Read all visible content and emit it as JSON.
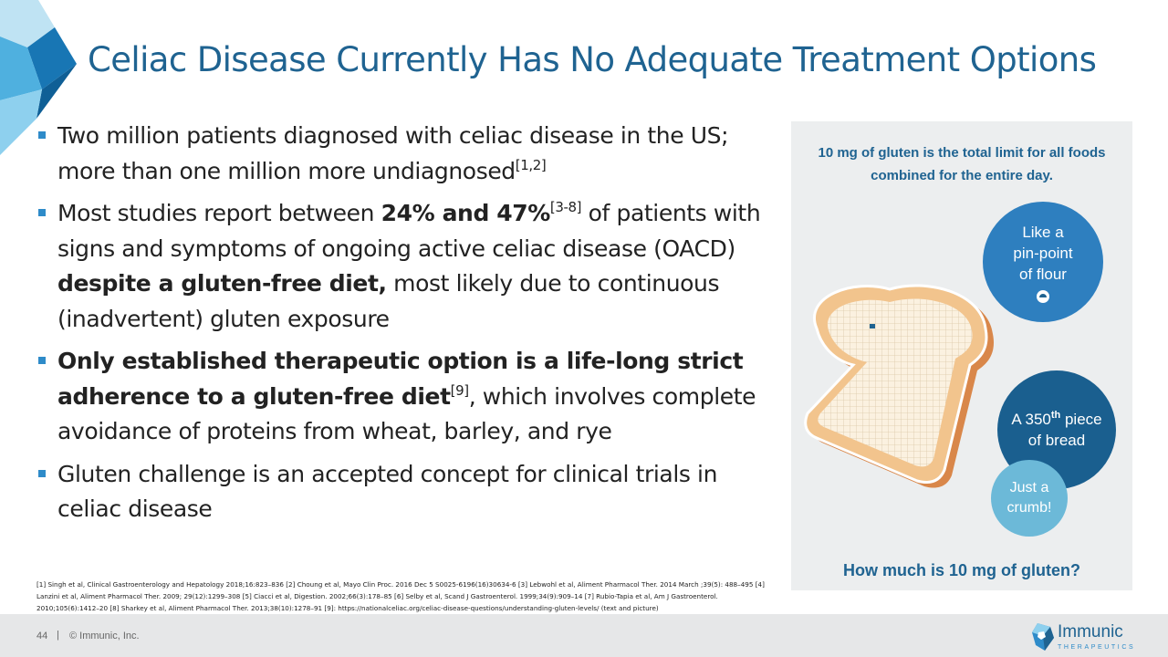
{
  "title": "Celiac Disease Currently Has No Adequate Treatment Options",
  "bullets": {
    "b1": {
      "t1": "Two million patients diagnosed with celiac disease in the US; more than one million more undiagnosed",
      "sup1": "[1,2]"
    },
    "b2": {
      "t1": "Most studies report between ",
      "bold1": "24% and 47%",
      "sup1": "[3-8]",
      "t2": " of patients with signs and symptoms of ongoing active celiac disease (OACD) ",
      "bold2": "despite a gluten-free diet,",
      "t3": " most likely due to continuous (inadvertent) gluten exposure"
    },
    "b3": {
      "bold1": "Only established therapeutic option is a life-long strict adherence to a gluten-free diet",
      "sup1": "[9]",
      "t1": ", which involves complete avoidance of proteins from wheat, barley, and rye"
    },
    "b4": {
      "t1": "Gluten challenge is an accepted concept for clinical trials in celiac disease"
    }
  },
  "panel": {
    "top_text": "10 mg of gluten is the total limit for all foods combined for the entire day.",
    "bottom_text": "How much is 10 mg of gluten?",
    "bubble1": {
      "l1": "Like a",
      "l2": "pin-point",
      "l3": "of flour"
    },
    "bubble2": {
      "l1a": "A 350",
      "l1sup": "th",
      "l1b": " piece",
      "l2": "of bread"
    },
    "bubble3": {
      "l1": "Just a",
      "l2": "crumb!"
    }
  },
  "references": "[1] Singh et al, Clinical Gastroenterology and Hepatology 2018;16:823–836 [2] Choung et al, Mayo Clin Proc. 2016 Dec 5 S0025-6196(16)30634-6 [3] Lebwohl et al, Aliment Pharmacol Ther. 2014 March ;39(5): 488–495 [4] Lanzini et al, Aliment Pharmacol Ther. 2009; 29(12):1299–308 [5] Ciacci et al, Digestion. 2002;66(3):178–85 [6] Selby et al, Scand J Gastroenterol. 1999;34(9):909–14 [7] Rubio-Tapia et al, Am J Gastroenterol. 2010;105(6):1412–20 [8] Sharkey et al, Aliment Pharmacol Ther. 2013;38(10):1278–91 [9]: https://nationalceliac.org/celiac-disease-questions/understanding-gluten-levels/ (text and picture)",
  "footer": {
    "page": "44",
    "separator": "|",
    "copyright": "© Immunic, Inc.",
    "logo_name": "Immunic",
    "logo_sub": "THERAPEUTICS"
  },
  "colors": {
    "title": "#1f6391",
    "bullet": "#2e8bc9",
    "panel_bg": "#eceeef",
    "bubble1": "#2e7fbf",
    "bubble2": "#1a5f8f",
    "bubble3": "#6cb9d8",
    "footer_bg": "#e6e7e8"
  },
  "icons": [
    "corner-diamond-decoration",
    "bread-slice-illustration",
    "flour-pinpoint-icon",
    "immunic-logo-icon"
  ]
}
